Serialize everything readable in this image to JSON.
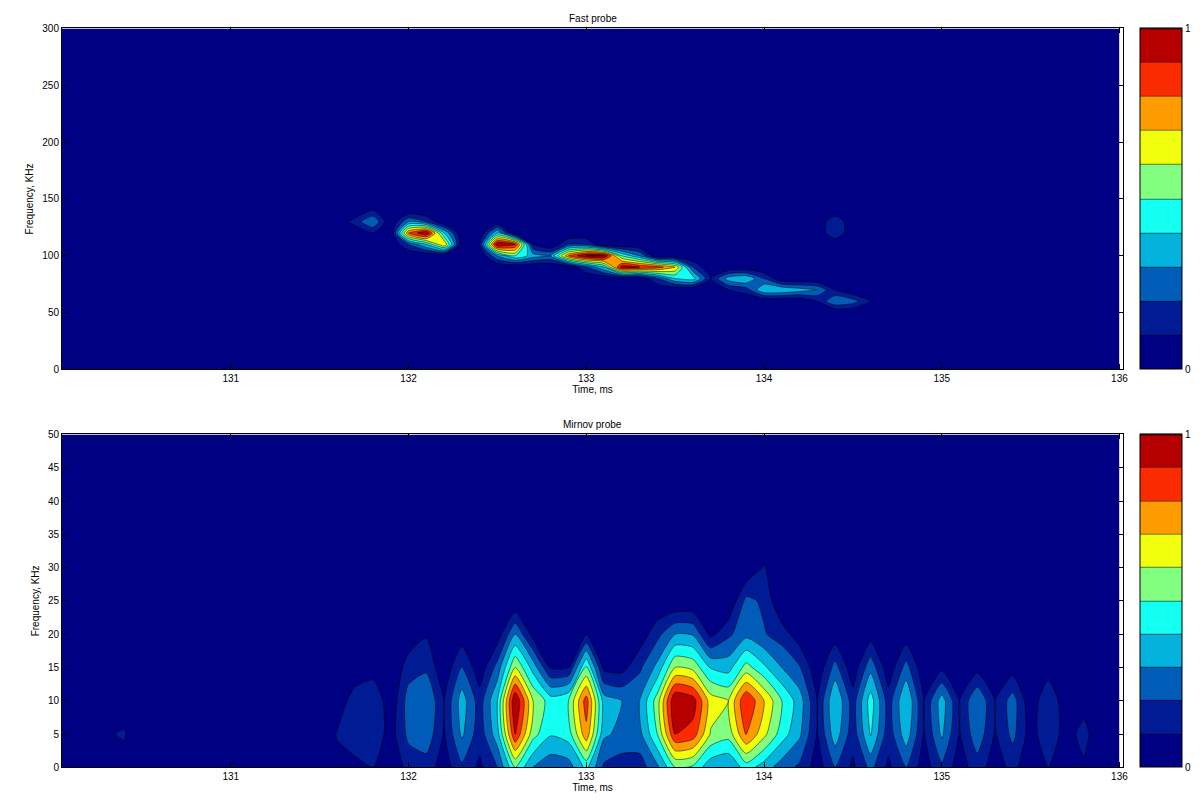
{
  "chart_data": [
    {
      "type": "contour",
      "title": "Fast probe",
      "x_label": "Time, ms",
      "y_label": "Frequency, KHz",
      "color": "Jet",
      "xlim": [
        130.05,
        136.02
      ],
      "xticks": [
        131,
        132,
        133,
        134,
        135,
        136
      ],
      "ylim": [
        0,
        300
      ],
      "yticks": [
        0,
        50,
        100,
        150,
        200,
        250,
        300
      ],
      "colorbar_range": [
        0,
        1
      ],
      "colorbar_ticks": [
        0,
        1
      ],
      "x": [
        130,
        131.6,
        131.7,
        131.8,
        131.9,
        132.0,
        132.1,
        132.2,
        132.3,
        132.4,
        132.5,
        132.6,
        132.7,
        132.8,
        132.9,
        133.0,
        133.1,
        133.2,
        133.3,
        133.4,
        133.5,
        133.6,
        133.7,
        133.8,
        133.9,
        134.0,
        134.1,
        134.2,
        134.3,
        134.4,
        134.5,
        134.6,
        134.7,
        134.8,
        136
      ],
      "y": [
        0,
        50,
        60,
        70,
        80,
        90,
        100,
        110,
        120,
        130,
        140,
        300
      ],
      "z": [
        [
          0,
          0,
          0,
          0,
          0,
          0,
          0,
          0,
          0,
          0,
          0,
          0,
          0,
          0,
          0,
          0,
          0,
          0,
          0,
          0,
          0,
          0,
          0,
          0,
          0,
          0,
          0,
          0,
          0,
          0,
          0,
          0,
          0,
          0,
          0
        ],
        [
          0,
          0,
          0,
          0,
          0,
          0,
          0,
          0,
          0,
          0,
          0,
          0,
          0,
          0,
          0,
          0,
          0,
          0,
          0,
          0,
          0,
          0,
          0,
          0,
          0,
          0,
          0,
          0,
          0,
          0,
          0,
          0,
          0,
          0,
          0
        ],
        [
          0,
          0,
          0,
          0,
          0,
          0,
          0,
          0,
          0,
          0,
          0,
          0,
          0,
          0,
          0,
          0,
          0,
          0,
          0,
          0,
          0,
          0,
          0,
          0,
          0,
          0,
          0,
          0,
          0.1,
          0.3,
          0.25,
          0.1,
          0,
          0,
          0
        ],
        [
          0,
          0,
          0,
          0,
          0,
          0,
          0,
          0,
          0,
          0,
          0,
          0,
          0,
          0,
          0,
          0,
          0,
          0,
          0,
          0,
          0,
          0,
          0,
          0.1,
          0.15,
          0.4,
          0.4,
          0.35,
          0.3,
          0.1,
          0,
          0,
          0,
          0,
          0
        ],
        [
          0,
          0,
          0,
          0,
          0,
          0,
          0,
          0,
          0,
          0,
          0,
          0,
          0,
          0,
          0,
          0,
          0,
          0,
          0,
          0.2,
          0.4,
          0.45,
          0.1,
          0.35,
          0.4,
          0.2,
          0,
          0,
          0,
          0,
          0,
          0,
          0,
          0,
          0
        ],
        [
          0,
          0,
          0,
          0,
          0,
          0,
          0,
          0,
          0,
          0,
          0,
          0,
          0,
          0,
          0,
          0.2,
          0.4,
          0.95,
          0.9,
          0.85,
          0.7,
          0.2,
          0,
          0,
          0,
          0,
          0,
          0,
          0,
          0,
          0,
          0,
          0,
          0,
          0
        ],
        [
          0,
          0,
          0,
          0,
          0,
          0,
          0,
          0,
          0,
          0,
          0.3,
          0.5,
          0.35,
          0.3,
          0.8,
          1,
          1,
          0.5,
          0.3,
          0,
          0,
          0,
          0,
          0,
          0,
          0,
          0,
          0,
          0,
          0,
          0,
          0,
          0,
          0,
          0
        ],
        [
          0,
          0,
          0,
          0,
          0,
          0.2,
          0.4,
          0.7,
          0,
          0.1,
          1,
          0.9,
          0.1,
          0,
          0.2,
          0.2,
          0,
          0,
          0,
          0,
          0,
          0,
          0,
          0,
          0,
          0,
          0,
          0,
          0,
          0,
          0,
          0,
          0,
          0,
          0
        ],
        [
          0,
          0,
          0,
          0.1,
          0,
          0.8,
          1,
          0.4,
          0,
          0,
          0.4,
          0,
          0,
          0,
          0,
          0,
          0,
          0,
          0,
          0,
          0,
          0,
          0,
          0,
          0,
          0,
          0,
          0,
          0,
          0.2,
          0,
          0,
          0,
          0,
          0
        ],
        [
          0,
          0,
          0.15,
          0.3,
          0,
          0.3,
          0.2,
          0,
          0,
          0,
          0,
          0,
          0,
          0,
          0,
          0,
          0,
          0,
          0,
          0,
          0,
          0,
          0,
          0,
          0,
          0,
          0,
          0,
          0,
          0.2,
          0,
          0,
          0,
          0,
          0
        ],
        [
          0,
          0,
          0,
          0.1,
          0,
          0,
          0,
          0,
          0,
          0,
          0,
          0,
          0,
          0,
          0,
          0,
          0,
          0,
          0,
          0,
          0,
          0,
          0,
          0,
          0,
          0,
          0,
          0,
          0,
          0,
          0,
          0,
          0,
          0,
          0
        ],
        [
          0,
          0,
          0,
          0,
          0,
          0,
          0,
          0,
          0,
          0,
          0,
          0,
          0,
          0,
          0,
          0,
          0,
          0,
          0,
          0,
          0,
          0,
          0,
          0,
          0,
          0,
          0,
          0,
          0,
          0,
          0,
          0,
          0,
          0,
          0
        ]
      ]
    },
    {
      "type": "contour",
      "title": "Mirnov probe",
      "x_label": "Time, ms",
      "y_label": "Frequency, KHz",
      "color": "Jet",
      "xlim": [
        130.05,
        136.02
      ],
      "xticks": [
        131,
        132,
        133,
        134,
        135,
        136
      ],
      "ylim": [
        0,
        50
      ],
      "yticks": [
        0,
        5,
        10,
        15,
        20,
        25,
        30,
        35,
        40,
        45,
        50
      ],
      "colorbar_range": [
        0,
        1
      ],
      "colorbar_ticks": [
        0,
        1
      ],
      "x": [
        130.0,
        130.1,
        130.2,
        130.3,
        130.4,
        130.5,
        130.6,
        130.7,
        130.8,
        130.9,
        131.0,
        131.1,
        131.2,
        131.3,
        131.4,
        131.5,
        131.6,
        131.7,
        131.8,
        131.9,
        132.0,
        132.1,
        132.2,
        132.3,
        132.4,
        132.5,
        132.6,
        132.7,
        132.8,
        132.9,
        133.0,
        133.1,
        133.2,
        133.3,
        133.4,
        133.5,
        133.6,
        133.7,
        133.8,
        133.9,
        134.0,
        134.1,
        134.2,
        134.3,
        134.4,
        134.5,
        134.6,
        134.7,
        134.8,
        134.9,
        135.0,
        135.1,
        135.2,
        135.3,
        135.4,
        135.5,
        135.6,
        135.7,
        135.8,
        135.9,
        136.0
      ],
      "y": [
        0,
        5,
        10,
        15,
        20,
        25,
        30,
        35,
        50
      ],
      "z": [
        [
          0.08,
          0,
          0,
          0.05,
          0.06,
          0,
          0.05,
          0,
          0.05,
          0,
          0.05,
          0,
          0.05,
          0,
          0.05,
          0,
          0.06,
          0.08,
          0.1,
          0.03,
          0.13,
          0.15,
          0.05,
          0.18,
          0.08,
          0.2,
          0.5,
          0.3,
          0.23,
          0.25,
          0.43,
          0.18,
          0.15,
          0.15,
          0.28,
          0.5,
          0.48,
          0.33,
          0.3,
          0.45,
          0.35,
          0.25,
          0.18,
          0.05,
          0.2,
          0.08,
          0.23,
          0.08,
          0.2,
          0.05,
          0.18,
          0.05,
          0.15,
          0.05,
          0.13,
          0.03,
          0.1,
          0.03,
          0.08,
          0,
          0
        ],
        [
          0.14,
          0,
          0,
          0.09,
          0.11,
          0,
          0.09,
          0,
          0.09,
          0,
          0.09,
          0,
          0.09,
          0,
          0.09,
          0,
          0.11,
          0.14,
          0.18,
          0.05,
          0.23,
          0.27,
          0.09,
          0.32,
          0.14,
          0.36,
          0.9,
          0.54,
          0.41,
          0.45,
          0.77,
          0.32,
          0.27,
          0.27,
          0.5,
          0.9,
          0.86,
          0.59,
          0.54,
          0.81,
          0.63,
          0.45,
          0.32,
          0.09,
          0.36,
          0.14,
          0.41,
          0.14,
          0.36,
          0.09,
          0.32,
          0.09,
          0.27,
          0.09,
          0.23,
          0.05,
          0.18,
          0.05,
          0.14,
          0,
          0
        ],
        [
          0.05,
          0,
          0,
          0.03,
          0.04,
          0,
          0.03,
          0,
          0.03,
          0,
          0.03,
          0,
          0.03,
          0,
          0.03,
          0,
          0.04,
          0.15,
          0.2,
          0.02,
          0.25,
          0.3,
          0.1,
          0.35,
          0.15,
          0.4,
          1,
          0.6,
          0.45,
          0.5,
          0.85,
          0.35,
          0.3,
          0.3,
          0.55,
          1,
          0.95,
          0.65,
          0.6,
          0.9,
          0.7,
          0.5,
          0.35,
          0.1,
          0.4,
          0.15,
          0.45,
          0.15,
          0.4,
          0.1,
          0.35,
          0.1,
          0.3,
          0.1,
          0.25,
          0.02,
          0.2,
          0.02,
          0.05,
          0,
          0
        ],
        [
          0,
          0,
          0,
          0,
          0,
          0,
          0,
          0,
          0,
          0,
          0,
          0,
          0,
          0,
          0,
          0,
          0,
          0.03,
          0.04,
          0,
          0.15,
          0.18,
          0.02,
          0.21,
          0.03,
          0.24,
          0.6,
          0.36,
          0.09,
          0.1,
          0.51,
          0.07,
          0.06,
          0.18,
          0.33,
          0.6,
          0.57,
          0.39,
          0.36,
          0.54,
          0.42,
          0.3,
          0.21,
          0.02,
          0.24,
          0.03,
          0.27,
          0.03,
          0.24,
          0.02,
          0.07,
          0.02,
          0.06,
          0.02,
          0.05,
          0,
          0.04,
          0,
          0,
          0,
          0
        ],
        [
          0,
          0,
          0,
          0,
          0,
          0,
          0,
          0,
          0,
          0,
          0,
          0,
          0,
          0,
          0,
          0,
          0,
          0,
          0,
          0,
          0.03,
          0.09,
          0,
          0.04,
          0,
          0.04,
          0.3,
          0.06,
          0,
          0,
          0.09,
          0,
          0,
          0.03,
          0.17,
          0.3,
          0.29,
          0.07,
          0.18,
          0.27,
          0.21,
          0.15,
          0.04,
          0,
          0.04,
          0,
          0.05,
          0,
          0.04,
          0,
          0,
          0,
          0,
          0,
          0,
          0,
          0,
          0,
          0,
          0,
          0
        ],
        [
          0,
          0,
          0,
          0,
          0,
          0,
          0,
          0,
          0,
          0,
          0,
          0,
          0,
          0,
          0,
          0,
          0,
          0,
          0,
          0,
          0,
          0.08,
          0,
          0,
          0,
          0,
          0,
          0,
          0,
          0,
          0,
          0,
          0,
          0,
          0,
          0,
          0,
          0,
          0,
          0.23,
          0.18,
          0,
          0,
          0,
          0,
          0,
          0,
          0,
          0,
          0,
          0,
          0,
          0,
          0,
          0,
          0,
          0,
          0,
          0,
          0,
          0
        ],
        [
          0,
          0,
          0,
          0,
          0,
          0,
          0,
          0,
          0,
          0,
          0,
          0,
          0,
          0,
          0,
          0,
          0,
          0,
          0,
          0,
          0,
          0,
          0,
          0,
          0,
          0,
          0,
          0,
          0,
          0,
          0,
          0,
          0,
          0,
          0,
          0,
          0,
          0,
          0,
          0,
          0.11,
          0,
          0,
          0,
          0,
          0,
          0,
          0,
          0,
          0,
          0,
          0,
          0,
          0,
          0,
          0,
          0,
          0,
          0,
          0,
          0
        ],
        [
          0,
          0,
          0,
          0,
          0,
          0,
          0,
          0,
          0,
          0,
          0,
          0,
          0,
          0,
          0,
          0,
          0,
          0,
          0,
          0,
          0,
          0,
          0,
          0,
          0,
          0,
          0,
          0,
          0,
          0,
          0,
          0,
          0,
          0,
          0,
          0,
          0,
          0,
          0,
          0,
          0,
          0,
          0,
          0,
          0,
          0,
          0,
          0,
          0,
          0,
          0,
          0,
          0,
          0,
          0,
          0,
          0,
          0,
          0,
          0,
          0
        ],
        [
          0,
          0,
          0,
          0,
          0,
          0,
          0,
          0,
          0,
          0,
          0,
          0,
          0,
          0,
          0,
          0,
          0,
          0,
          0,
          0,
          0,
          0,
          0,
          0,
          0,
          0,
          0,
          0,
          0,
          0,
          0,
          0,
          0,
          0,
          0,
          0,
          0,
          0,
          0,
          0,
          0,
          0,
          0,
          0,
          0,
          0,
          0,
          0,
          0,
          0,
          0,
          0,
          0,
          0,
          0,
          0,
          0,
          0,
          0,
          0,
          0
        ]
      ]
    }
  ]
}
